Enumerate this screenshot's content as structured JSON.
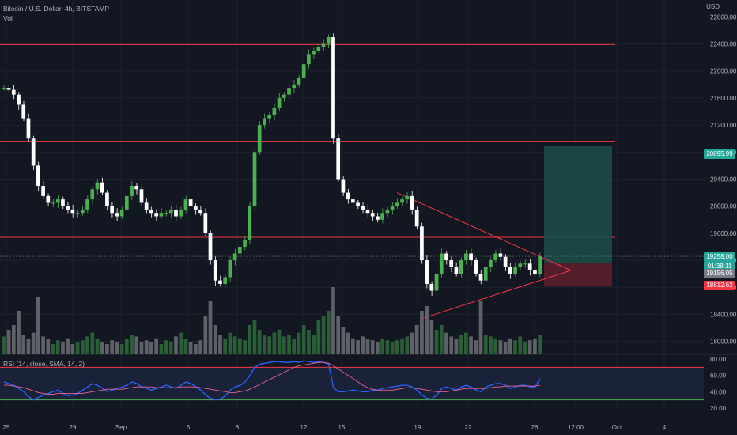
{
  "header": {
    "title": "Bitcoin / U.S. Dollar, 4h, BITSTAMP",
    "vol_label": "Vol",
    "currency": "USD"
  },
  "price_tags": {
    "target": "20895.99",
    "last": "19258.00",
    "countdown": "01:38:11",
    "entry": "19156.05",
    "stop": "18812.62"
  },
  "rsi_label": "RSI (14, close, SMA, 14, 2)",
  "colors": {
    "bg": "#131722",
    "up": "#26a69a",
    "up_bar": "#4caf50",
    "down": "#ffffff",
    "level_line": "#f23645",
    "target_zone": "#1b4d4a",
    "stop_zone": "#5b1f2a",
    "rsi_line": "#2962ff",
    "rsi_ma": "#f06292",
    "rsi_band": "#1e2a4a"
  },
  "chart_data": [
    {
      "type": "candlestick",
      "title": "Bitcoin / U.S. Dollar, 4h, BITSTAMP",
      "y_ticks": [
        18000,
        18400,
        18800,
        19200,
        19600,
        20000,
        20400,
        20800,
        21200,
        21600,
        22000,
        22400,
        22800
      ],
      "ylim": [
        17820,
        23050
      ],
      "x_ticks": [
        "25",
        "29",
        "Sep",
        "5",
        "8",
        "12",
        "15",
        "19",
        "22",
        "26",
        "12:00",
        "Oct",
        "4"
      ],
      "horizontal_levels": [
        22390,
        20960,
        19540
      ],
      "triangle": {
        "upper": [
          [
            20200,
            20200
          ],
          [
            19200,
            19200
          ]
        ],
        "apex_price": 19050
      },
      "position": {
        "target": 20895.99,
        "entry": 19156.05,
        "stop": 18812.62,
        "last": 19258.0
      },
      "price_path": [
        21750,
        21720,
        21650,
        21500,
        21300,
        21000,
        20600,
        20300,
        20150,
        20050,
        20050,
        20100,
        20000,
        19950,
        19900,
        19900,
        19950,
        20100,
        20250,
        20350,
        20200,
        20000,
        19900,
        19850,
        19950,
        20150,
        20300,
        20250,
        20050,
        19950,
        19900,
        19850,
        19900,
        19900,
        19950,
        19850,
        19950,
        20100,
        20000,
        19950,
        19900,
        19600,
        19200,
        18900,
        18850,
        18950,
        19200,
        19300,
        19400,
        19500,
        20000,
        20800,
        21200,
        21300,
        21350,
        21450,
        21600,
        21650,
        21750,
        21800,
        21900,
        22100,
        22250,
        22300,
        22350,
        22400,
        22500,
        21000,
        20400,
        20200,
        20100,
        20050,
        20000,
        19950,
        19900,
        19850,
        19800,
        19900,
        19950,
        20000,
        20050,
        20100,
        20150,
        19950,
        19700,
        19200,
        18850,
        18750,
        19000,
        19300,
        19200,
        19100,
        19000,
        19200,
        19300,
        19200,
        19000,
        18900,
        19100,
        19200,
        19300,
        19250,
        19100,
        19000,
        19100,
        19150,
        19150,
        19050,
        19000,
        19258
      ],
      "volume_path": [
        18,
        25,
        30,
        45,
        20,
        15,
        22,
        60,
        18,
        15,
        10,
        14,
        12,
        16,
        10,
        12,
        14,
        18,
        22,
        16,
        12,
        10,
        14,
        12,
        10,
        16,
        20,
        18,
        12,
        14,
        12,
        16,
        10,
        14,
        12,
        18,
        22,
        15,
        12,
        10,
        14,
        40,
        55,
        30,
        20,
        16,
        22,
        18,
        16,
        14,
        30,
        35,
        25,
        20,
        18,
        22,
        25,
        18,
        20,
        16,
        22,
        30,
        25,
        20,
        35,
        40,
        45,
        70,
        40,
        28,
        22,
        16,
        14,
        18,
        15,
        14,
        12,
        16,
        14,
        12,
        14,
        16,
        18,
        22,
        30,
        45,
        50,
        35,
        25,
        30,
        22,
        18,
        16,
        20,
        22,
        18,
        14,
        55,
        20,
        18,
        16,
        14,
        12,
        16,
        14,
        18,
        12,
        14,
        16,
        20
      ]
    },
    {
      "type": "line",
      "title": "RSI (14, close, SMA, 14, 2)",
      "y_ticks": [
        20,
        40,
        60,
        80
      ],
      "ylim": [
        18,
        84
      ],
      "upper_band": 70,
      "lower_band": 30,
      "series": [
        {
          "values": [
            52,
            50,
            48,
            44,
            40,
            34,
            30,
            33,
            36,
            38,
            40,
            42,
            38,
            35,
            36,
            38,
            42,
            46,
            50,
            48,
            44,
            40,
            42,
            44,
            46,
            48,
            52,
            50,
            46,
            44,
            42,
            44,
            46,
            48,
            46,
            44,
            48,
            52,
            50,
            46,
            42,
            36,
            32,
            30,
            31,
            35,
            42,
            46,
            48,
            52,
            60,
            70,
            74,
            75,
            76,
            77,
            77,
            76,
            76,
            77,
            76,
            78,
            77,
            76,
            77,
            76,
            74,
            45,
            40,
            40,
            41,
            42,
            41,
            40,
            40,
            42,
            42,
            44,
            45,
            46,
            47,
            48,
            48,
            46,
            42,
            36,
            32,
            31,
            36,
            44,
            46,
            44,
            42,
            46,
            48,
            46,
            42,
            40,
            46,
            48,
            50,
            50,
            48,
            44,
            46,
            48,
            48,
            46,
            46,
            56
          ]
        },
        {
          "values": [
            48,
            48,
            47,
            46,
            45,
            43,
            41,
            39,
            38,
            37,
            37,
            38,
            38,
            38,
            38,
            38,
            38,
            39,
            40,
            41,
            42,
            43,
            43,
            43,
            43,
            44,
            45,
            46,
            46,
            46,
            46,
            45,
            45,
            45,
            45,
            45,
            46,
            46,
            46,
            46,
            45,
            44,
            43,
            42,
            41,
            40,
            39,
            39,
            40,
            41,
            43,
            46,
            49,
            52,
            55,
            58,
            61,
            64,
            67,
            70,
            72,
            73,
            74,
            75,
            76,
            76,
            75,
            72,
            68,
            64,
            60,
            56,
            52,
            48,
            45,
            43,
            42,
            42,
            42,
            42,
            43,
            44,
            45,
            45,
            44,
            43,
            42,
            41,
            40,
            40,
            40,
            41,
            42,
            43,
            44,
            44,
            44,
            44,
            44,
            45,
            46,
            46,
            47,
            47,
            47,
            47,
            47,
            47,
            47,
            48
          ]
        }
      ]
    }
  ]
}
